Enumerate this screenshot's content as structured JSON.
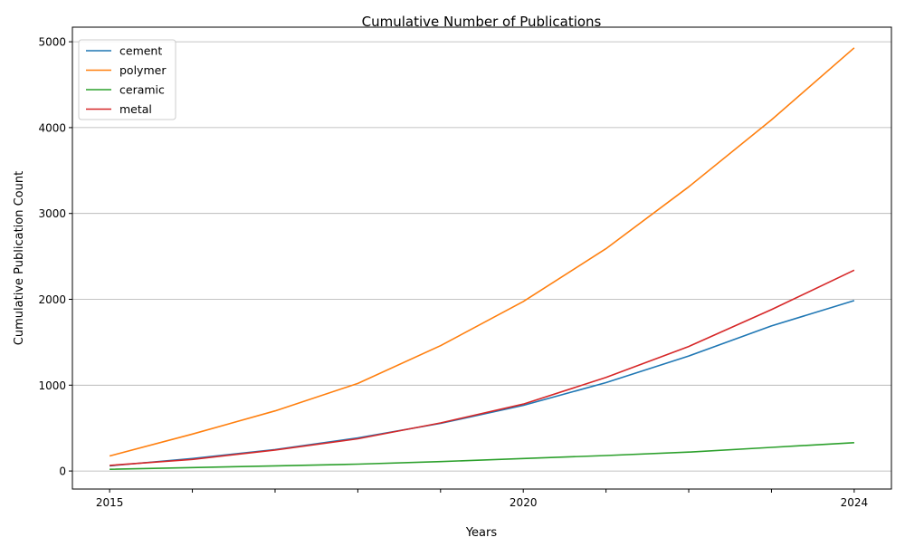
{
  "chart_data": {
    "type": "line",
    "title": "Cumulative Number of Publications",
    "xlabel": "Years",
    "ylabel": "Cumulative Publication Count",
    "x": [
      2015,
      2016,
      2017,
      2018,
      2019,
      2020,
      2021,
      2022,
      2023,
      2024
    ],
    "xlim": [
      2014.55,
      2024.45
    ],
    "ylim": [
      -210,
      5170
    ],
    "x_tick_values": [
      2015,
      2016,
      2017,
      2018,
      2019,
      2020,
      2021,
      2022,
      2023,
      2024
    ],
    "x_tick_labels": [
      "2015",
      "",
      "",
      "",
      "",
      "2020",
      "",
      "",
      "",
      "2024"
    ],
    "y_ticks": [
      0,
      1000,
      2000,
      3000,
      4000,
      5000
    ],
    "grid": "y",
    "legend_position": "upper-left",
    "series": [
      {
        "name": "cement",
        "color": "#1f77b4",
        "values": [
          60,
          145,
          250,
          385,
          555,
          765,
          1030,
          1340,
          1690,
          1985
        ]
      },
      {
        "name": "polymer",
        "color": "#ff7f0e",
        "values": [
          175,
          430,
          700,
          1020,
          1460,
          1975,
          2590,
          3310,
          4090,
          4930
        ]
      },
      {
        "name": "ceramic",
        "color": "#2ca02c",
        "values": [
          20,
          40,
          60,
          80,
          110,
          145,
          180,
          220,
          275,
          330
        ]
      },
      {
        "name": "metal",
        "color": "#d62728",
        "values": [
          65,
          135,
          245,
          375,
          560,
          780,
          1090,
          1450,
          1880,
          2340
        ]
      }
    ]
  }
}
